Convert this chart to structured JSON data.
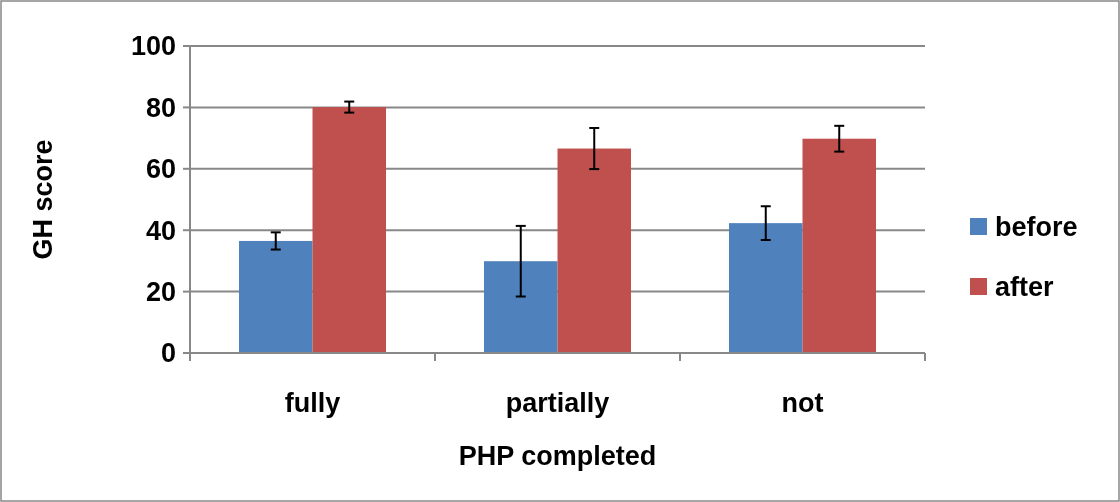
{
  "chart_data": {
    "type": "bar",
    "xlabel": "PHP completed",
    "ylabel": "GH score",
    "categories": [
      "fully",
      "partially",
      "not"
    ],
    "series": [
      {
        "name": "before",
        "color": "#4f81bd",
        "values": [
          36.5,
          29.9,
          42.3
        ],
        "errors": [
          2.8,
          11.5,
          5.5
        ]
      },
      {
        "name": "after",
        "color": "#c0504d",
        "values": [
          80.1,
          66.6,
          69.8
        ],
        "errors": [
          1.8,
          6.7,
          4.2
        ]
      }
    ],
    "ylim": [
      0,
      100
    ],
    "yticks": [
      0,
      20,
      40,
      60,
      80,
      100
    ],
    "grid": "y",
    "legend": "right"
  }
}
